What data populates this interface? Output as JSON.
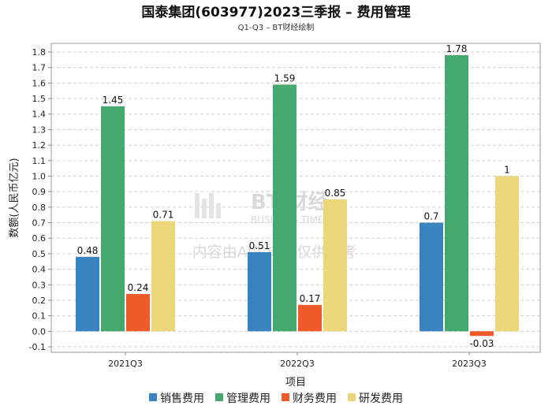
{
  "chart_data": {
    "type": "bar",
    "title": "国泰集团(603977)2023三季报 – 费用管理",
    "subtitle": "Q1-Q3 – BT财经绘制",
    "xlabel": "项目",
    "ylabel": "数额(人民币亿元)",
    "categories": [
      "2021Q3",
      "2022Q3",
      "2023Q3"
    ],
    "ylim": [
      -0.1,
      1.8
    ],
    "yticks": [
      "-0.1",
      "0.0",
      "0.1",
      "0.2",
      "0.3",
      "0.4",
      "0.5",
      "0.6",
      "0.7",
      "0.8",
      "0.9",
      "1.0",
      "1.1",
      "1.2",
      "1.3",
      "1.4",
      "1.5",
      "1.6",
      "1.7",
      "1.8"
    ],
    "grid": true,
    "legend_position": "bottom",
    "series": [
      {
        "name": "销售费用",
        "color": "#3a83c1",
        "values": [
          0.48,
          0.51,
          0.7
        ],
        "labels": [
          "0.48",
          "0.51",
          "0.7"
        ]
      },
      {
        "name": "管理费用",
        "color": "#45a96f",
        "values": [
          1.45,
          1.59,
          1.78
        ],
        "labels": [
          "1.45",
          "1.59",
          "1.78"
        ]
      },
      {
        "name": "财务费用",
        "color": "#ef5a28",
        "values": [
          0.24,
          0.17,
          -0.03
        ],
        "labels": [
          "0.24",
          "0.17",
          "-0.03"
        ]
      },
      {
        "name": "研发费用",
        "color": "#ecd67a",
        "values": [
          0.71,
          0.85,
          1.0
        ],
        "labels": [
          "0.71",
          "0.85",
          "1"
        ]
      }
    ]
  },
  "watermark": {
    "brand": "BT 财经",
    "brand_en": "BUSINESS TIMES",
    "notice": "内容由AI生成，仅供参考"
  }
}
